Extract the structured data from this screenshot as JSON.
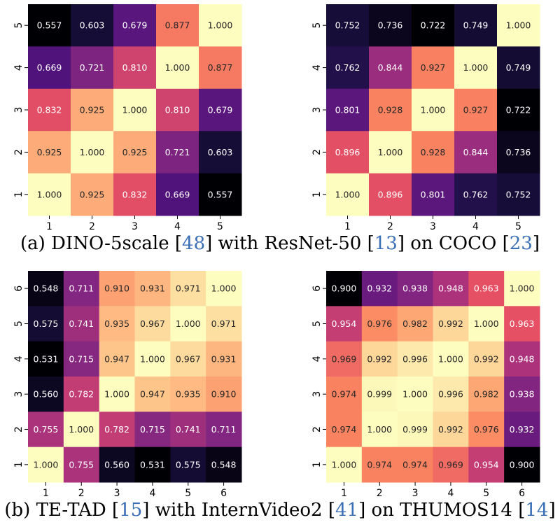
{
  "captions": {
    "a": {
      "pre": "(a) DINO-5scale [",
      "ref1": "48",
      "mid1": "] with ResNet-50 [",
      "ref2": "13",
      "mid2": "] on COCO [",
      "ref3": "23",
      "post": "]"
    },
    "b": {
      "pre": "(b) TE-TAD [",
      "ref1": "15",
      "mid1": "] with InternVideo2 [",
      "ref2": "41",
      "mid2": "] on THUMOS14 [",
      "ref3": "14",
      "post": "]"
    }
  },
  "chart_data": [
    {
      "type": "heatmap",
      "colormap": "magma",
      "x_ticks": [
        "1",
        "2",
        "3",
        "4",
        "5"
      ],
      "y_ticks_top_to_bottom": [
        "5",
        "4",
        "3",
        "2",
        "1"
      ],
      "cells_top_to_bottom": [
        [
          "0.557",
          "0.603",
          "0.679",
          "0.877",
          "1.000"
        ],
        [
          "0.669",
          "0.721",
          "0.810",
          "1.000",
          "0.877"
        ],
        [
          "0.832",
          "0.925",
          "1.000",
          "0.810",
          "0.679"
        ],
        [
          "0.925",
          "1.000",
          "0.925",
          "0.721",
          "0.603"
        ],
        [
          "1.000",
          "0.925",
          "0.832",
          "0.669",
          "0.557"
        ]
      ]
    },
    {
      "type": "heatmap",
      "colormap": "magma",
      "x_ticks": [
        "1",
        "2",
        "3",
        "4",
        "5"
      ],
      "y_ticks_top_to_bottom": [
        "5",
        "4",
        "3",
        "2",
        "1"
      ],
      "cells_top_to_bottom": [
        [
          "0.752",
          "0.736",
          "0.722",
          "0.749",
          "1.000"
        ],
        [
          "0.762",
          "0.844",
          "0.927",
          "1.000",
          "0.749"
        ],
        [
          "0.801",
          "0.928",
          "1.000",
          "0.927",
          "0.722"
        ],
        [
          "0.896",
          "1.000",
          "0.928",
          "0.844",
          "0.736"
        ],
        [
          "1.000",
          "0.896",
          "0.801",
          "0.762",
          "0.752"
        ]
      ]
    },
    {
      "type": "heatmap",
      "colormap": "magma",
      "x_ticks": [
        "1",
        "2",
        "3",
        "4",
        "5",
        "6"
      ],
      "y_ticks_top_to_bottom": [
        "6",
        "5",
        "4",
        "3",
        "2",
        "1"
      ],
      "cells_top_to_bottom": [
        [
          "0.548",
          "0.711",
          "0.910",
          "0.931",
          "0.971",
          "1.000"
        ],
        [
          "0.575",
          "0.741",
          "0.935",
          "0.967",
          "1.000",
          "0.971"
        ],
        [
          "0.531",
          "0.715",
          "0.947",
          "1.000",
          "0.967",
          "0.931"
        ],
        [
          "0.560",
          "0.782",
          "1.000",
          "0.947",
          "0.935",
          "0.910"
        ],
        [
          "0.755",
          "1.000",
          "0.782",
          "0.715",
          "0.741",
          "0.711"
        ],
        [
          "1.000",
          "0.755",
          "0.560",
          "0.531",
          "0.575",
          "0.548"
        ]
      ]
    },
    {
      "type": "heatmap",
      "colormap": "magma",
      "x_ticks": [
        "1",
        "2",
        "3",
        "4",
        "5",
        "6"
      ],
      "y_ticks_top_to_bottom": [
        "6",
        "5",
        "4",
        "3",
        "2",
        "1"
      ],
      "cells_top_to_bottom": [
        [
          "0.900",
          "0.932",
          "0.938",
          "0.948",
          "0.963",
          "1.000"
        ],
        [
          "0.954",
          "0.976",
          "0.982",
          "0.992",
          "1.000",
          "0.963"
        ],
        [
          "0.969",
          "0.992",
          "0.996",
          "1.000",
          "0.992",
          "0.948"
        ],
        [
          "0.974",
          "0.999",
          "1.000",
          "0.996",
          "0.982",
          "0.938"
        ],
        [
          "0.974",
          "1.000",
          "0.999",
          "0.992",
          "0.976",
          "0.932"
        ],
        [
          "1.000",
          "0.974",
          "0.974",
          "0.969",
          "0.954",
          "0.900"
        ]
      ]
    }
  ]
}
